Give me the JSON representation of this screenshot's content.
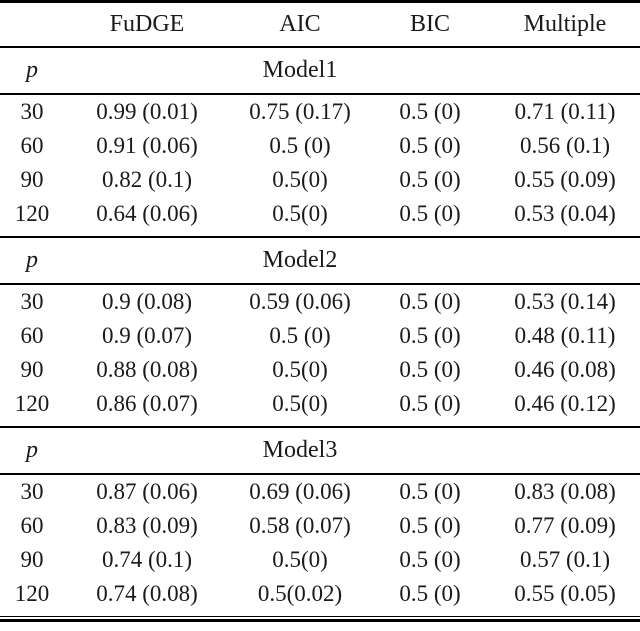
{
  "colors": {
    "background": "#ffffff",
    "text": "#1a1a1a",
    "rule": "#000000"
  },
  "table": {
    "columns": [
      "",
      "FuDGE",
      "AIC",
      "BIC",
      "Multiple"
    ],
    "p_label": "p",
    "sections": [
      {
        "title": "Model1",
        "rows": [
          {
            "p": "30",
            "fudge": "0.99 (0.01)",
            "aic": "0.75 (0.17)",
            "bic": "0.5 (0)",
            "multiple": "0.71 (0.11)"
          },
          {
            "p": "60",
            "fudge": "0.91 (0.06)",
            "aic": "0.5 (0)",
            "bic": "0.5 (0)",
            "multiple": "0.56 (0.1)"
          },
          {
            "p": "90",
            "fudge": "0.82 (0.1)",
            "aic": "0.5(0)",
            "bic": "0.5 (0)",
            "multiple": "0.55 (0.09)"
          },
          {
            "p": "120",
            "fudge": "0.64 (0.06)",
            "aic": "0.5(0)",
            "bic": "0.5 (0)",
            "multiple": "0.53 (0.04)"
          }
        ]
      },
      {
        "title": "Model2",
        "rows": [
          {
            "p": "30",
            "fudge": "0.9 (0.08)",
            "aic": "0.59 (0.06)",
            "bic": "0.5 (0)",
            "multiple": "0.53 (0.14)"
          },
          {
            "p": "60",
            "fudge": "0.9 (0.07)",
            "aic": "0.5 (0)",
            "bic": "0.5 (0)",
            "multiple": "0.48 (0.11)"
          },
          {
            "p": "90",
            "fudge": "0.88 (0.08)",
            "aic": "0.5(0)",
            "bic": "0.5 (0)",
            "multiple": "0.46 (0.08)"
          },
          {
            "p": "120",
            "fudge": "0.86 (0.07)",
            "aic": "0.5(0)",
            "bic": "0.5 (0)",
            "multiple": "0.46 (0.12)"
          }
        ]
      },
      {
        "title": "Model3",
        "rows": [
          {
            "p": "30",
            "fudge": "0.87 (0.06)",
            "aic": "0.69 (0.06)",
            "bic": "0.5 (0)",
            "multiple": "0.83 (0.08)"
          },
          {
            "p": "60",
            "fudge": "0.83 (0.09)",
            "aic": "0.58 (0.07)",
            "bic": "0.5 (0)",
            "multiple": "0.77 (0.09)"
          },
          {
            "p": "90",
            "fudge": "0.74 (0.1)",
            "aic": "0.5(0)",
            "bic": "0.5 (0)",
            "multiple": "0.57 (0.1)"
          },
          {
            "p": "120",
            "fudge": "0.74 (0.08)",
            "aic": "0.5(0.02)",
            "bic": "0.5 (0)",
            "multiple": "0.55 (0.05)"
          }
        ]
      }
    ]
  }
}
